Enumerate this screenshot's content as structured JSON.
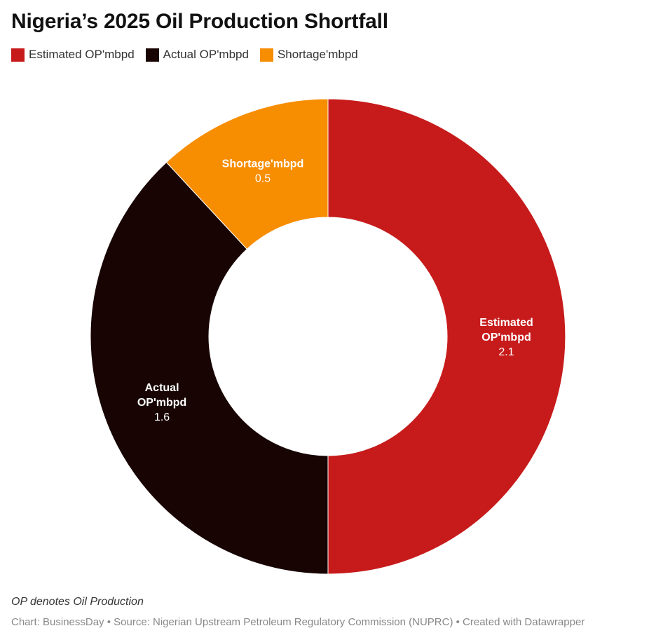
{
  "chart_data": {
    "type": "pie",
    "donut": true,
    "title": "Nigeria’s 2025 Oil Production Shortfall",
    "legend_position": "top-left",
    "slices": [
      {
        "label": "Estimated OP'mbpd",
        "label_lines": [
          "Estimated",
          "OP'mbpd"
        ],
        "value": 2.1,
        "value_label": "2.1",
        "color": "#c71b1b"
      },
      {
        "label": "Actual OP'mbpd",
        "label_lines": [
          "Actual",
          "OP'mbpd"
        ],
        "value": 1.6,
        "value_label": "1.6",
        "color": "#170403"
      },
      {
        "label": "Shortage'mbpd",
        "label_lines": [
          "Shortage'mbpd"
        ],
        "value": 0.5,
        "value_label": "0.5",
        "color": "#f78d00"
      }
    ]
  },
  "note": "OP denotes Oil Production",
  "footer": "Chart: BusinessDay • Source: Nigerian Upstream Petroleum Regulatory Commission (NUPRC) • Created with Datawrapper"
}
